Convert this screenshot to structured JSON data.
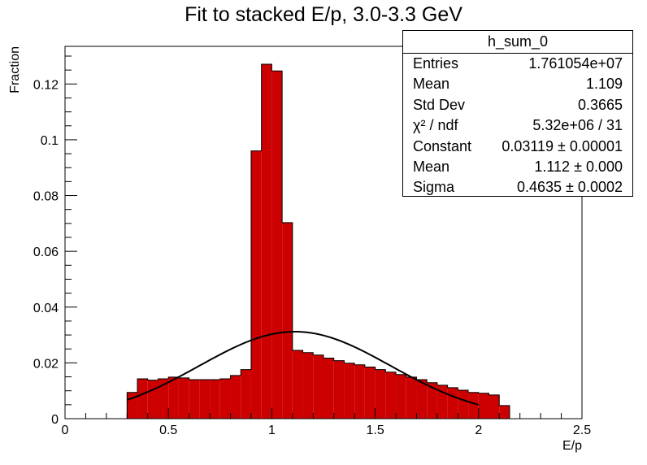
{
  "chart_data": {
    "type": "bar",
    "title": "Fit to stacked E/p, 3.0-3.3 GeV",
    "xlabel": "E/p",
    "ylabel": "Fraction",
    "xlim": [
      0,
      2.5
    ],
    "ylim": [
      0,
      0.1335
    ],
    "grid": false,
    "bar_color": "#cc0000",
    "fit_color": "#000000",
    "x_ticks": [
      {
        "value": 0,
        "label": "0"
      },
      {
        "value": 0.5,
        "label": "0.5"
      },
      {
        "value": 1,
        "label": "1"
      },
      {
        "value": 1.5,
        "label": "1.5"
      },
      {
        "value": 2,
        "label": "2"
      },
      {
        "value": 2.5,
        "label": "2.5"
      }
    ],
    "y_ticks": [
      {
        "value": 0,
        "label": "0"
      },
      {
        "value": 0.02,
        "label": "0.02"
      },
      {
        "value": 0.04,
        "label": "0.04"
      },
      {
        "value": 0.06,
        "label": "0.06"
      },
      {
        "value": 0.08,
        "label": "0.08"
      },
      {
        "value": 0.1,
        "label": "0.1"
      },
      {
        "value": 0.12,
        "label": "0.12"
      }
    ],
    "bins": [
      {
        "x0": 0.3,
        "x1": 0.35,
        "value": 0.0094
      },
      {
        "x0": 0.35,
        "x1": 0.4,
        "value": 0.0143
      },
      {
        "x0": 0.4,
        "x1": 0.45,
        "value": 0.0138
      },
      {
        "x0": 0.45,
        "x1": 0.5,
        "value": 0.0143
      },
      {
        "x0": 0.5,
        "x1": 0.55,
        "value": 0.0149
      },
      {
        "x0": 0.55,
        "x1": 0.6,
        "value": 0.0146
      },
      {
        "x0": 0.6,
        "x1": 0.65,
        "value": 0.014
      },
      {
        "x0": 0.65,
        "x1": 0.7,
        "value": 0.014
      },
      {
        "x0": 0.7,
        "x1": 0.75,
        "value": 0.014
      },
      {
        "x0": 0.75,
        "x1": 0.8,
        "value": 0.0143
      },
      {
        "x0": 0.8,
        "x1": 0.85,
        "value": 0.0155
      },
      {
        "x0": 0.85,
        "x1": 0.9,
        "value": 0.0176
      },
      {
        "x0": 0.9,
        "x1": 0.95,
        "value": 0.096
      },
      {
        "x0": 0.95,
        "x1": 1.0,
        "value": 0.1271
      },
      {
        "x0": 1.0,
        "x1": 1.05,
        "value": 0.1247
      },
      {
        "x0": 1.05,
        "x1": 1.1,
        "value": 0.0703
      },
      {
        "x0": 1.1,
        "x1": 1.15,
        "value": 0.0245
      },
      {
        "x0": 1.15,
        "x1": 1.2,
        "value": 0.0237
      },
      {
        "x0": 1.2,
        "x1": 1.25,
        "value": 0.0228
      },
      {
        "x0": 1.25,
        "x1": 1.3,
        "value": 0.0217
      },
      {
        "x0": 1.3,
        "x1": 1.35,
        "value": 0.0208
      },
      {
        "x0": 1.35,
        "x1": 1.4,
        "value": 0.0199
      },
      {
        "x0": 1.4,
        "x1": 1.45,
        "value": 0.0193
      },
      {
        "x0": 1.45,
        "x1": 1.5,
        "value": 0.0185
      },
      {
        "x0": 1.5,
        "x1": 1.55,
        "value": 0.0176
      },
      {
        "x0": 1.55,
        "x1": 1.6,
        "value": 0.0167
      },
      {
        "x0": 1.6,
        "x1": 1.65,
        "value": 0.0158
      },
      {
        "x0": 1.65,
        "x1": 1.7,
        "value": 0.0149
      },
      {
        "x0": 1.7,
        "x1": 1.75,
        "value": 0.014
      },
      {
        "x0": 1.75,
        "x1": 1.8,
        "value": 0.0129
      },
      {
        "x0": 1.8,
        "x1": 1.85,
        "value": 0.012
      },
      {
        "x0": 1.85,
        "x1": 1.9,
        "value": 0.0111
      },
      {
        "x0": 1.9,
        "x1": 1.95,
        "value": 0.0102
      },
      {
        "x0": 1.95,
        "x1": 2.0,
        "value": 0.0094
      },
      {
        "x0": 2.0,
        "x1": 2.05,
        "value": 0.0091
      },
      {
        "x0": 2.05,
        "x1": 2.1,
        "value": 0.0085
      },
      {
        "x0": 2.1,
        "x1": 2.15,
        "value": 0.0047
      }
    ],
    "fit": {
      "function": "gaus",
      "constant": 0.03119,
      "mean": 1.112,
      "sigma": 0.4635,
      "x_range": [
        0.3,
        2.0
      ]
    }
  },
  "stats_box": {
    "title": "h_sum_0",
    "rows": [
      {
        "name": "Entries",
        "value": "1.761054e+07"
      },
      {
        "name": "Mean",
        "value": "1.109"
      },
      {
        "name": "Std Dev",
        "value": "0.3665"
      },
      {
        "name": "χ² / ndf",
        "value": "5.32e+06 / 31"
      },
      {
        "name": "Constant",
        "value": "0.03119 ± 0.00001"
      },
      {
        "name": "Mean",
        "value": "1.112 ± 0.000"
      },
      {
        "name": "Sigma",
        "value": "0.4635 ± 0.0002"
      }
    ]
  }
}
